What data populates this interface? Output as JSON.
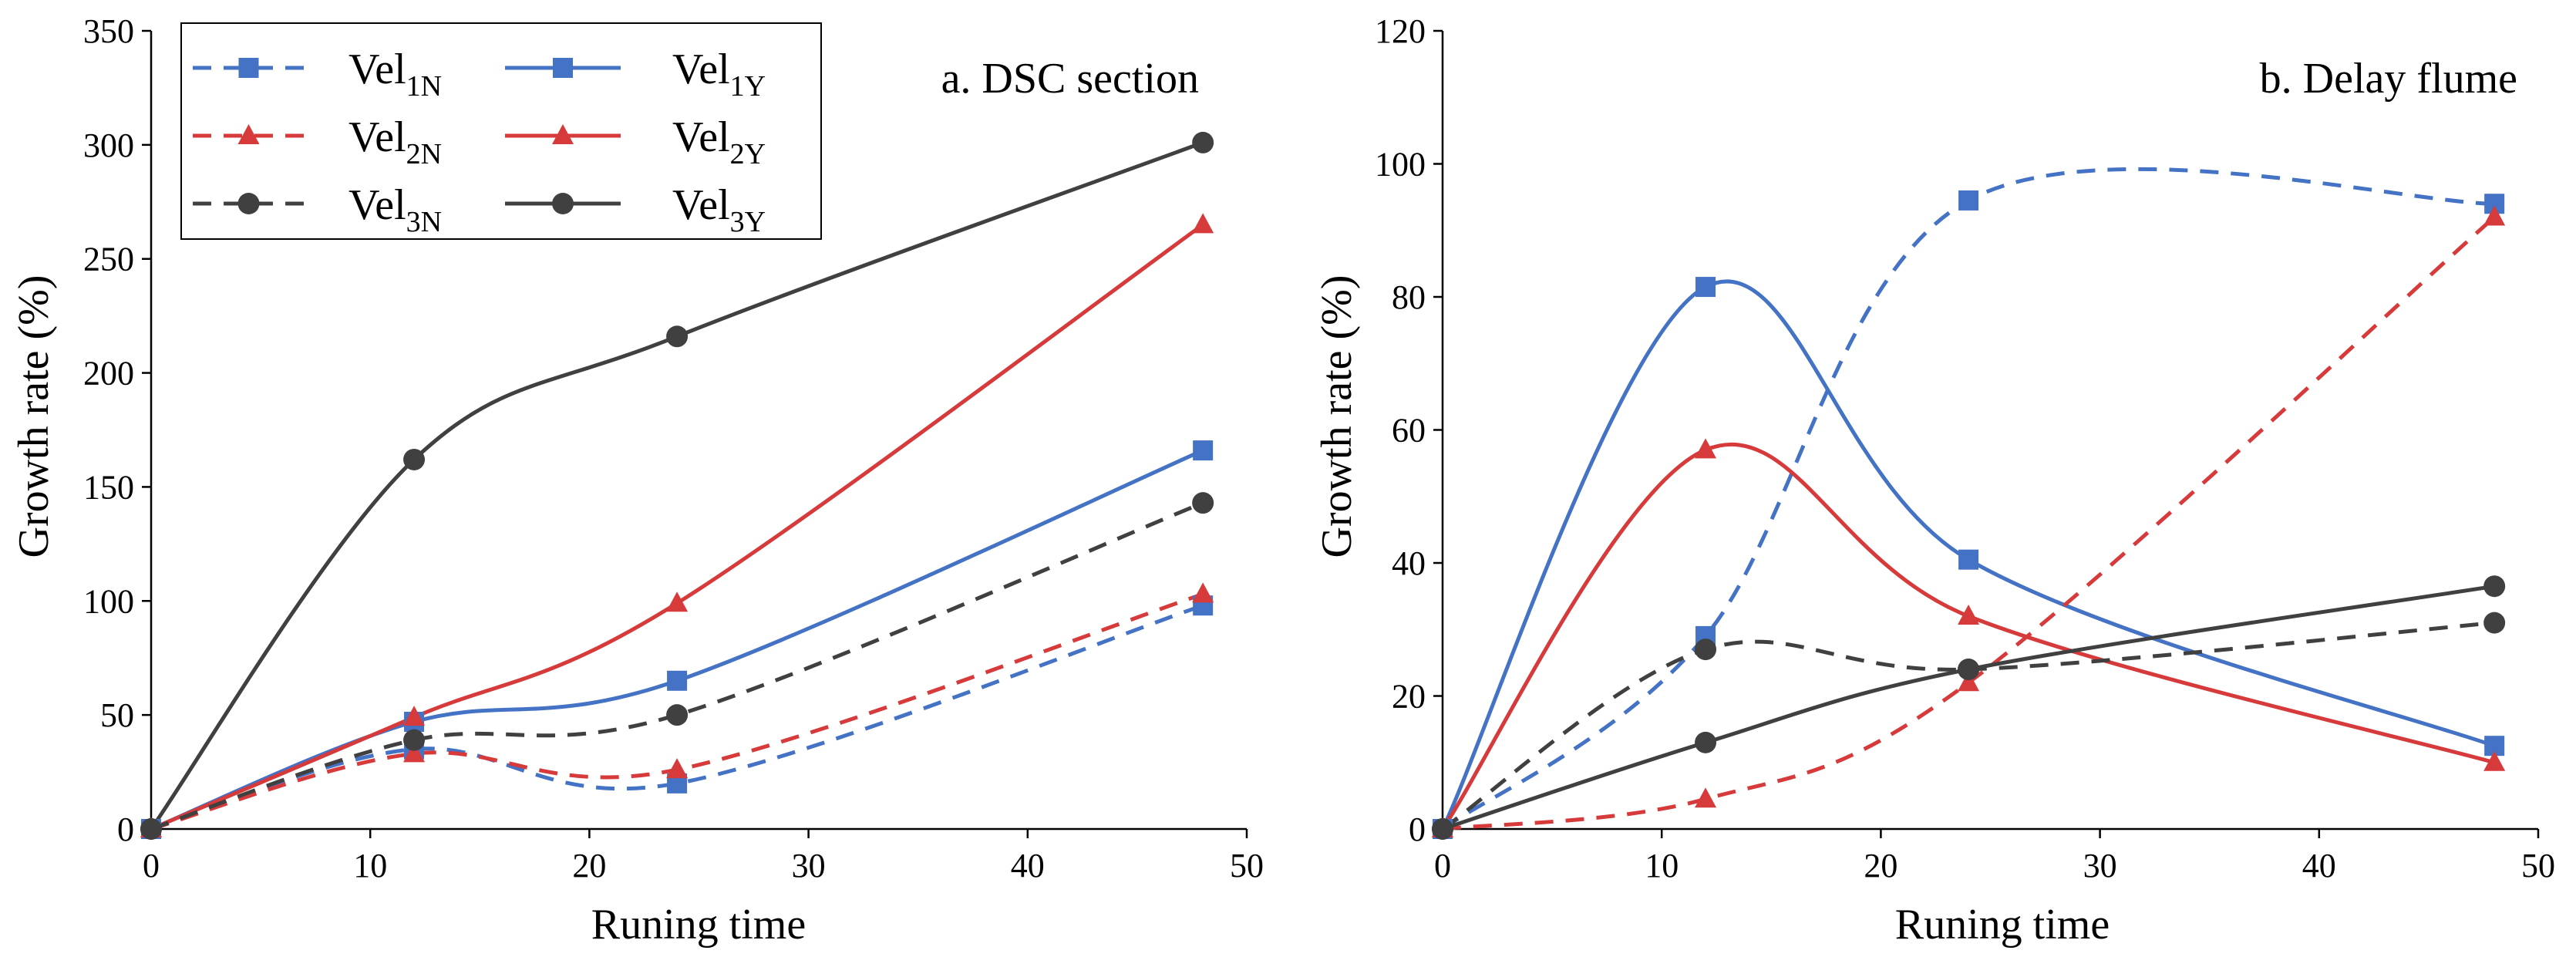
{
  "colors": {
    "blue": "#4472C4",
    "red": "#D73A3A",
    "black": "#404040",
    "axis": "#000000"
  },
  "legend": {
    "entries": [
      {
        "base": "Vel",
        "sub": "1N",
        "color": "#4472C4",
        "dash": true,
        "marker": "square"
      },
      {
        "base": "Vel",
        "sub": "1Y",
        "color": "#4472C4",
        "dash": false,
        "marker": "square"
      },
      {
        "base": "Vel",
        "sub": "2N",
        "color": "#D73A3A",
        "dash": true,
        "marker": "triangle"
      },
      {
        "base": "Vel",
        "sub": "2Y",
        "color": "#D73A3A",
        "dash": false,
        "marker": "triangle"
      },
      {
        "base": "Vel",
        "sub": "3N",
        "color": "#404040",
        "dash": true,
        "marker": "circle"
      },
      {
        "base": "Vel",
        "sub": "3Y",
        "color": "#404040",
        "dash": false,
        "marker": "circle"
      }
    ]
  },
  "chart_data": [
    {
      "type": "line",
      "title": "a. DSC section",
      "xlabel": "Runing time",
      "ylabel": "Growth rate (%)",
      "xlim": [
        0,
        50
      ],
      "ylim": [
        0,
        350
      ],
      "xticks": [
        0,
        10,
        20,
        30,
        40,
        50
      ],
      "yticks": [
        0,
        50,
        100,
        150,
        200,
        250,
        300,
        350
      ],
      "x": [
        0,
        12,
        24,
        48
      ],
      "legend": "top-left",
      "grid": false,
      "series": [
        {
          "name": "Vel1N",
          "color": "#4472C4",
          "dash": true,
          "marker": "square",
          "values": [
            0,
            35,
            20,
            98
          ]
        },
        {
          "name": "Vel1Y",
          "color": "#4472C4",
          "dash": false,
          "marker": "square",
          "values": [
            0,
            47,
            65,
            166
          ]
        },
        {
          "name": "Vel2N",
          "color": "#D73A3A",
          "dash": true,
          "marker": "triangle",
          "values": [
            0,
            33,
            26,
            103
          ]
        },
        {
          "name": "Vel2Y",
          "color": "#D73A3A",
          "dash": false,
          "marker": "triangle",
          "values": [
            0,
            49,
            99,
            265
          ]
        },
        {
          "name": "Vel3N",
          "color": "#404040",
          "dash": true,
          "marker": "circle",
          "values": [
            0,
            39,
            50,
            143
          ]
        },
        {
          "name": "Vel3Y",
          "color": "#404040",
          "dash": false,
          "marker": "circle",
          "values": [
            0,
            162,
            216,
            301
          ]
        }
      ]
    },
    {
      "type": "line",
      "title": "b. Delay  flume",
      "xlabel": "Runing time",
      "ylabel": "Growth rate (%)",
      "xlim": [
        0,
        50
      ],
      "ylim": [
        0,
        120
      ],
      "xticks": [
        0,
        10,
        20,
        30,
        40,
        50
      ],
      "yticks": [
        0,
        20,
        40,
        60,
        80,
        100,
        120
      ],
      "x": [
        0,
        12,
        24,
        48
      ],
      "grid": false,
      "series": [
        {
          "name": "Vel1N",
          "color": "#4472C4",
          "dash": true,
          "marker": "square",
          "values": [
            0,
            29,
            94.5,
            94
          ]
        },
        {
          "name": "Vel1Y",
          "color": "#4472C4",
          "dash": false,
          "marker": "square",
          "values": [
            0,
            81.5,
            40.5,
            12.5
          ]
        },
        {
          "name": "Vel2N",
          "color": "#D73A3A",
          "dash": true,
          "marker": "triangle",
          "values": [
            0,
            4.5,
            22,
            92
          ]
        },
        {
          "name": "Vel2Y",
          "color": "#D73A3A",
          "dash": false,
          "marker": "triangle",
          "values": [
            0,
            57,
            32,
            10
          ]
        },
        {
          "name": "Vel3N",
          "color": "#404040",
          "dash": true,
          "marker": "circle",
          "values": [
            0,
            27,
            24,
            31
          ]
        },
        {
          "name": "Vel3Y",
          "color": "#404040",
          "dash": false,
          "marker": "circle",
          "values": [
            0,
            13,
            24,
            36.5
          ]
        }
      ]
    }
  ]
}
